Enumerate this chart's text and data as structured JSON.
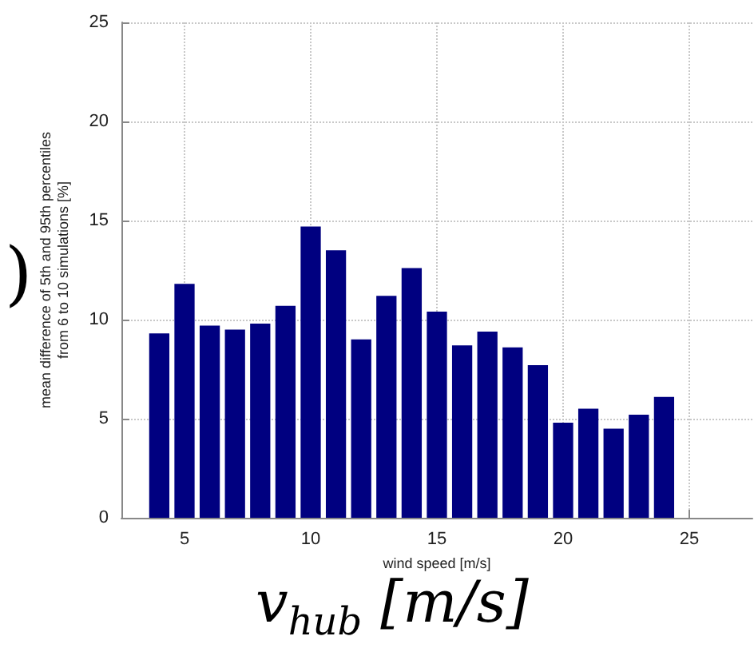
{
  "chart_data": {
    "type": "bar",
    "xlabel": "wind speed [m/s]",
    "ylabel": "mean difference of 5th and 95th percentiles\nfrom 6 to 10 simulations [%]",
    "x": [
      4,
      5,
      6,
      7,
      8,
      9,
      10,
      11,
      12,
      13,
      14,
      15,
      16,
      17,
      18,
      19,
      20,
      21,
      22,
      23,
      24
    ],
    "values": [
      9.3,
      11.8,
      9.7,
      9.5,
      9.8,
      10.7,
      14.7,
      13.5,
      9.0,
      11.2,
      12.6,
      10.4,
      8.7,
      9.4,
      8.6,
      7.7,
      4.8,
      5.5,
      4.5,
      5.2,
      6.1
    ],
    "color": "#000080",
    "xlim": [
      2.5,
      27.5
    ],
    "xticks": [
      5,
      10,
      15,
      20,
      25
    ],
    "ylim": [
      0,
      25
    ],
    "yticks": [
      0,
      5,
      10,
      15,
      20,
      25
    ],
    "grid": true,
    "annotations": [
      ")",
      "v$_{hub}$ [m/s]"
    ]
  }
}
